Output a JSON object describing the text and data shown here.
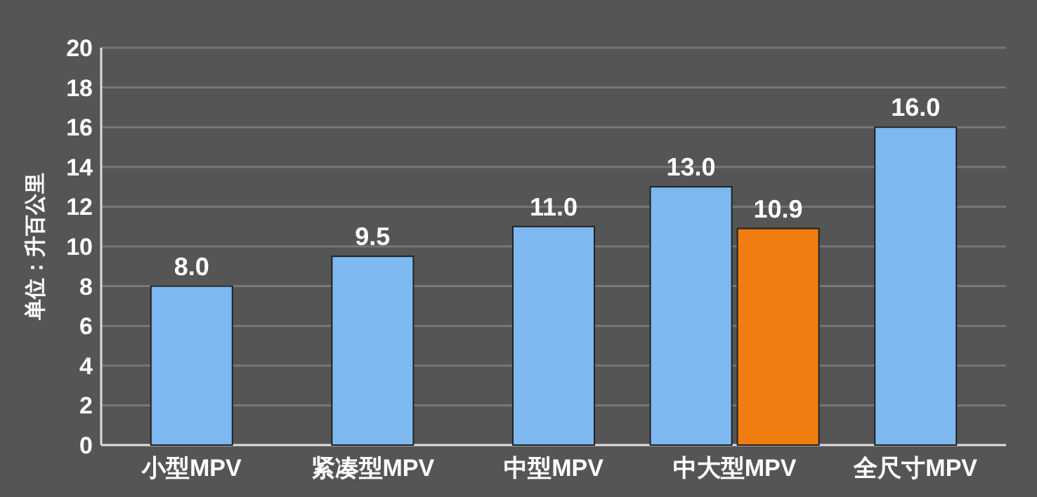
{
  "chart_data": {
    "type": "bar",
    "ylabel": "单位：升百公里",
    "categories": [
      "小型MPV",
      "紧凑型MPV",
      "中型MPV",
      "中大型MPV",
      "全尺寸MPV"
    ],
    "series": [
      {
        "color": "#7db8f0",
        "values": [
          8.0,
          9.5,
          11.0,
          13.0,
          16.0
        ],
        "value_labels": [
          "8.0",
          "9.5",
          "11.0",
          "13.0",
          "16.0"
        ]
      },
      {
        "color": "#f07d10",
        "values": [
          null,
          null,
          null,
          10.9,
          null
        ],
        "value_labels": [
          null,
          null,
          null,
          "10.9",
          null
        ]
      }
    ],
    "ylim": [
      0,
      20
    ],
    "yticks": [
      0,
      2,
      4,
      6,
      8,
      10,
      12,
      14,
      16,
      18,
      20
    ],
    "grid": "y"
  }
}
